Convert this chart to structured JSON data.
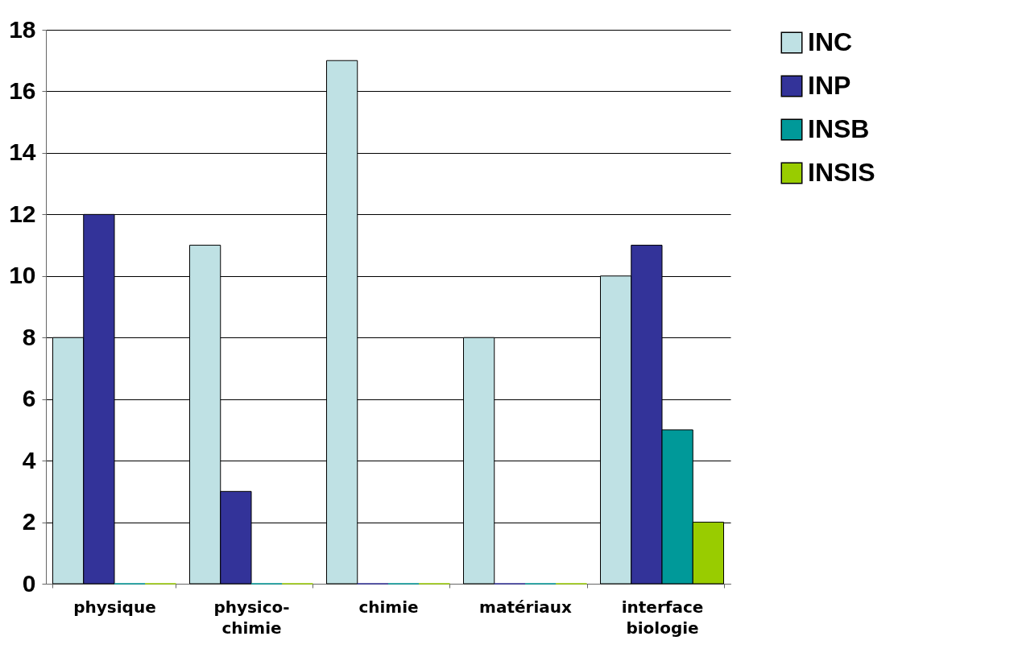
{
  "chart_data": {
    "type": "bar",
    "categories": [
      "physique",
      "physico-chimie",
      "chimie",
      "matériaux",
      "interface biologie"
    ],
    "series": [
      {
        "name": "INC",
        "color": "#bfe1e4",
        "values": [
          8,
          11,
          17,
          8,
          10
        ]
      },
      {
        "name": "INP",
        "color": "#333399",
        "values": [
          12,
          3,
          0,
          0,
          11
        ]
      },
      {
        "name": "INSB",
        "color": "#009999",
        "values": [
          0,
          0,
          0,
          0,
          5
        ]
      },
      {
        "name": "INSIS",
        "color": "#99cc00",
        "values": [
          0,
          0,
          0,
          0,
          2
        ]
      }
    ],
    "ylim": [
      0,
      18
    ],
    "yticks": [
      0,
      2,
      4,
      6,
      8,
      10,
      12,
      14,
      16,
      18
    ],
    "grid": "y",
    "legend": "right"
  }
}
